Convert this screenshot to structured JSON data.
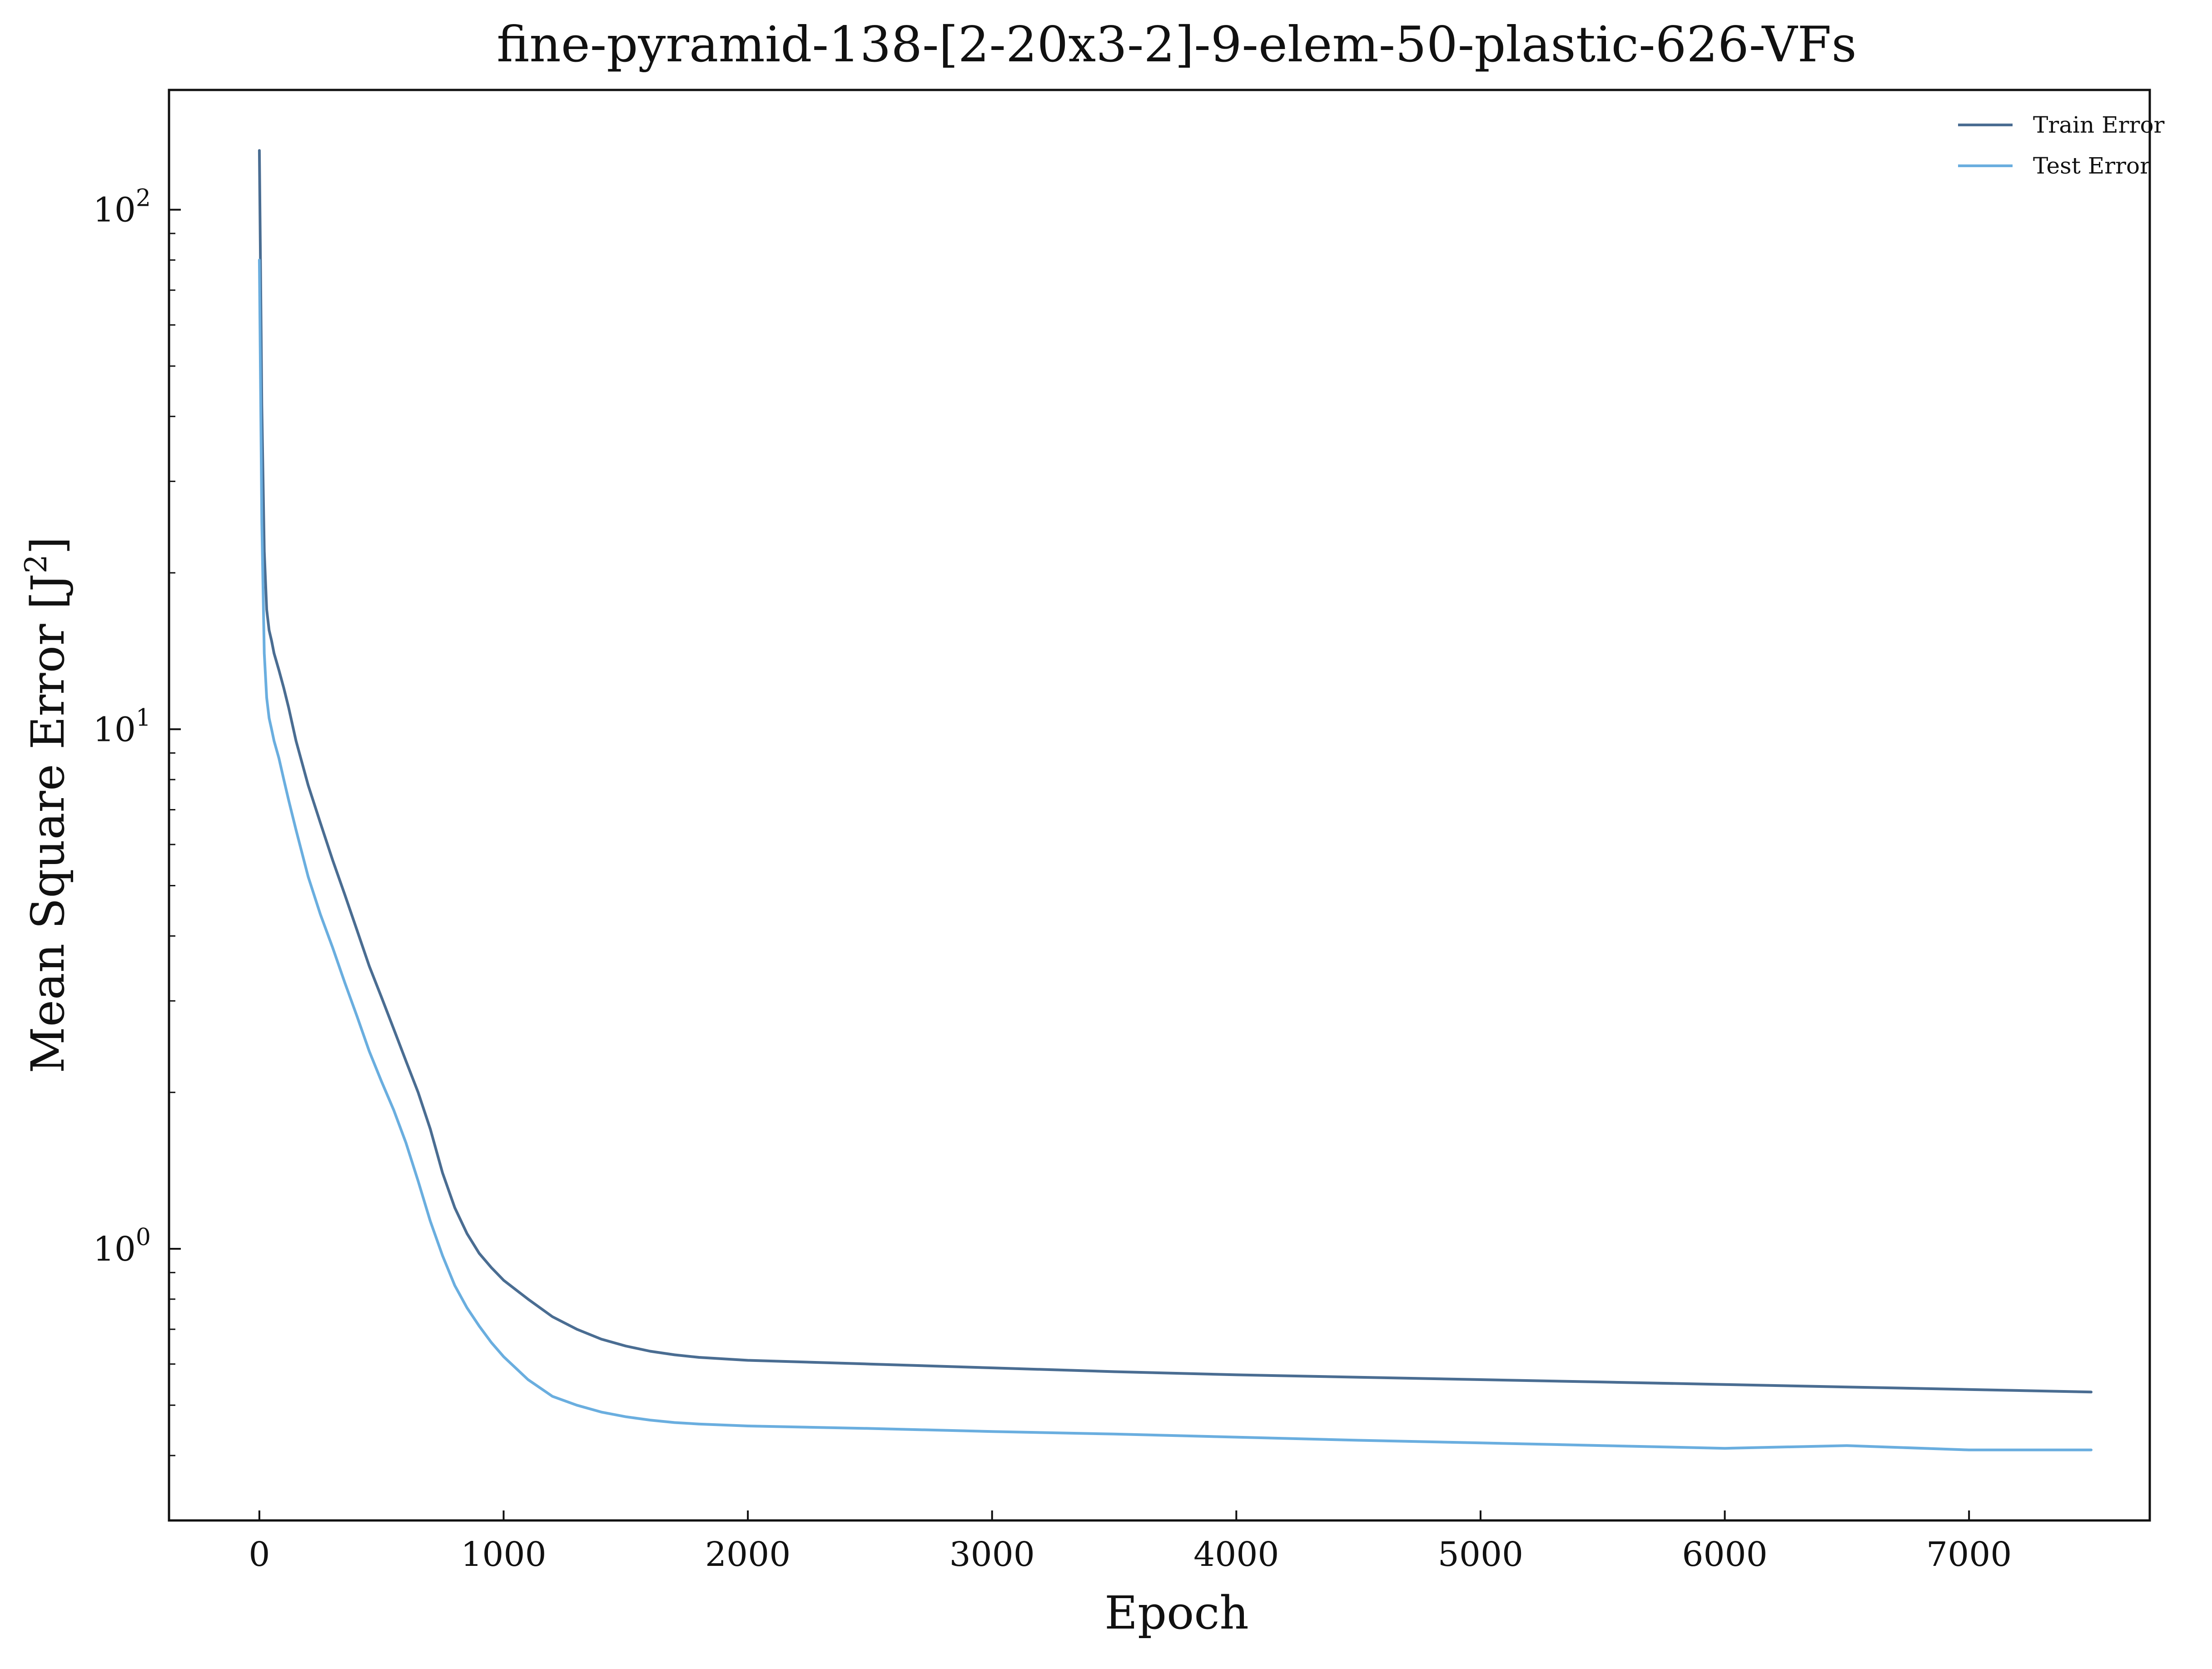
{
  "chart_data": {
    "type": "line",
    "title": "fine-pyramid-138-[2-20x3-2]-9-elem-50-plastic-626-VFs",
    "xlabel": "Epoch",
    "ylabel_main": "Mean Square Error [J",
    "ylabel_sup": "2",
    "ylabel_close": "]",
    "xscale": "linear",
    "yscale": "log",
    "xlim": [
      -370,
      7740
    ],
    "ylim": [
      0.3,
      170
    ],
    "grid": false,
    "legend_position": "top-right",
    "xticks": [
      {
        "value": 0,
        "label": "0"
      },
      {
        "value": 1000,
        "label": "1000"
      },
      {
        "value": 2000,
        "label": "2000"
      },
      {
        "value": 3000,
        "label": "3000"
      },
      {
        "value": 4000,
        "label": "4000"
      },
      {
        "value": 5000,
        "label": "5000"
      },
      {
        "value": 6000,
        "label": "6000"
      },
      {
        "value": 7000,
        "label": "7000"
      }
    ],
    "yticks": [
      {
        "value": 1,
        "base": "10",
        "exp": "0"
      },
      {
        "value": 10,
        "base": "10",
        "exp": "1"
      },
      {
        "value": 100,
        "base": "10",
        "exp": "2"
      }
    ],
    "series": [
      {
        "name": "Train Error",
        "color": "#4a6d92",
        "x": [
          0,
          5,
          10,
          20,
          30,
          40,
          50,
          60,
          80,
          100,
          120,
          150,
          200,
          250,
          300,
          350,
          400,
          450,
          500,
          550,
          600,
          650,
          700,
          750,
          800,
          850,
          900,
          950,
          1000,
          1100,
          1200,
          1300,
          1400,
          1500,
          1600,
          1700,
          1800,
          2000,
          2500,
          3000,
          3500,
          4000,
          4500,
          5000,
          5500,
          6000,
          6500,
          7000,
          7500
        ],
        "y": [
          130,
          75,
          42,
          22,
          17,
          15.5,
          14.8,
          14.0,
          13.0,
          12.0,
          11.0,
          9.5,
          7.8,
          6.6,
          5.6,
          4.8,
          4.1,
          3.5,
          3.05,
          2.65,
          2.3,
          2.0,
          1.7,
          1.4,
          1.2,
          1.07,
          0.98,
          0.92,
          0.87,
          0.8,
          0.74,
          0.7,
          0.67,
          0.65,
          0.635,
          0.625,
          0.618,
          0.61,
          0.6,
          0.59,
          0.58,
          0.572,
          0.566,
          0.56,
          0.554,
          0.548,
          0.542,
          0.536,
          0.53
        ]
      },
      {
        "name": "Test Error",
        "color": "#6aaedf",
        "x": [
          0,
          5,
          10,
          20,
          30,
          40,
          50,
          60,
          80,
          100,
          120,
          150,
          200,
          250,
          300,
          350,
          400,
          450,
          500,
          550,
          600,
          650,
          700,
          750,
          800,
          850,
          900,
          950,
          1000,
          1100,
          1200,
          1300,
          1400,
          1500,
          1600,
          1700,
          1800,
          2000,
          2500,
          3000,
          3500,
          4000,
          4500,
          5000,
          5500,
          6000,
          6500,
          7000,
          7500
        ],
        "y": [
          80,
          45,
          25,
          14,
          11.5,
          10.5,
          10.0,
          9.5,
          8.8,
          8.0,
          7.3,
          6.4,
          5.2,
          4.4,
          3.8,
          3.25,
          2.8,
          2.4,
          2.1,
          1.85,
          1.6,
          1.35,
          1.13,
          0.97,
          0.85,
          0.77,
          0.71,
          0.66,
          0.62,
          0.56,
          0.52,
          0.5,
          0.485,
          0.475,
          0.468,
          0.463,
          0.46,
          0.456,
          0.451,
          0.445,
          0.44,
          0.434,
          0.428,
          0.423,
          0.418,
          0.413,
          0.418,
          0.41,
          0.41
        ]
      }
    ]
  }
}
